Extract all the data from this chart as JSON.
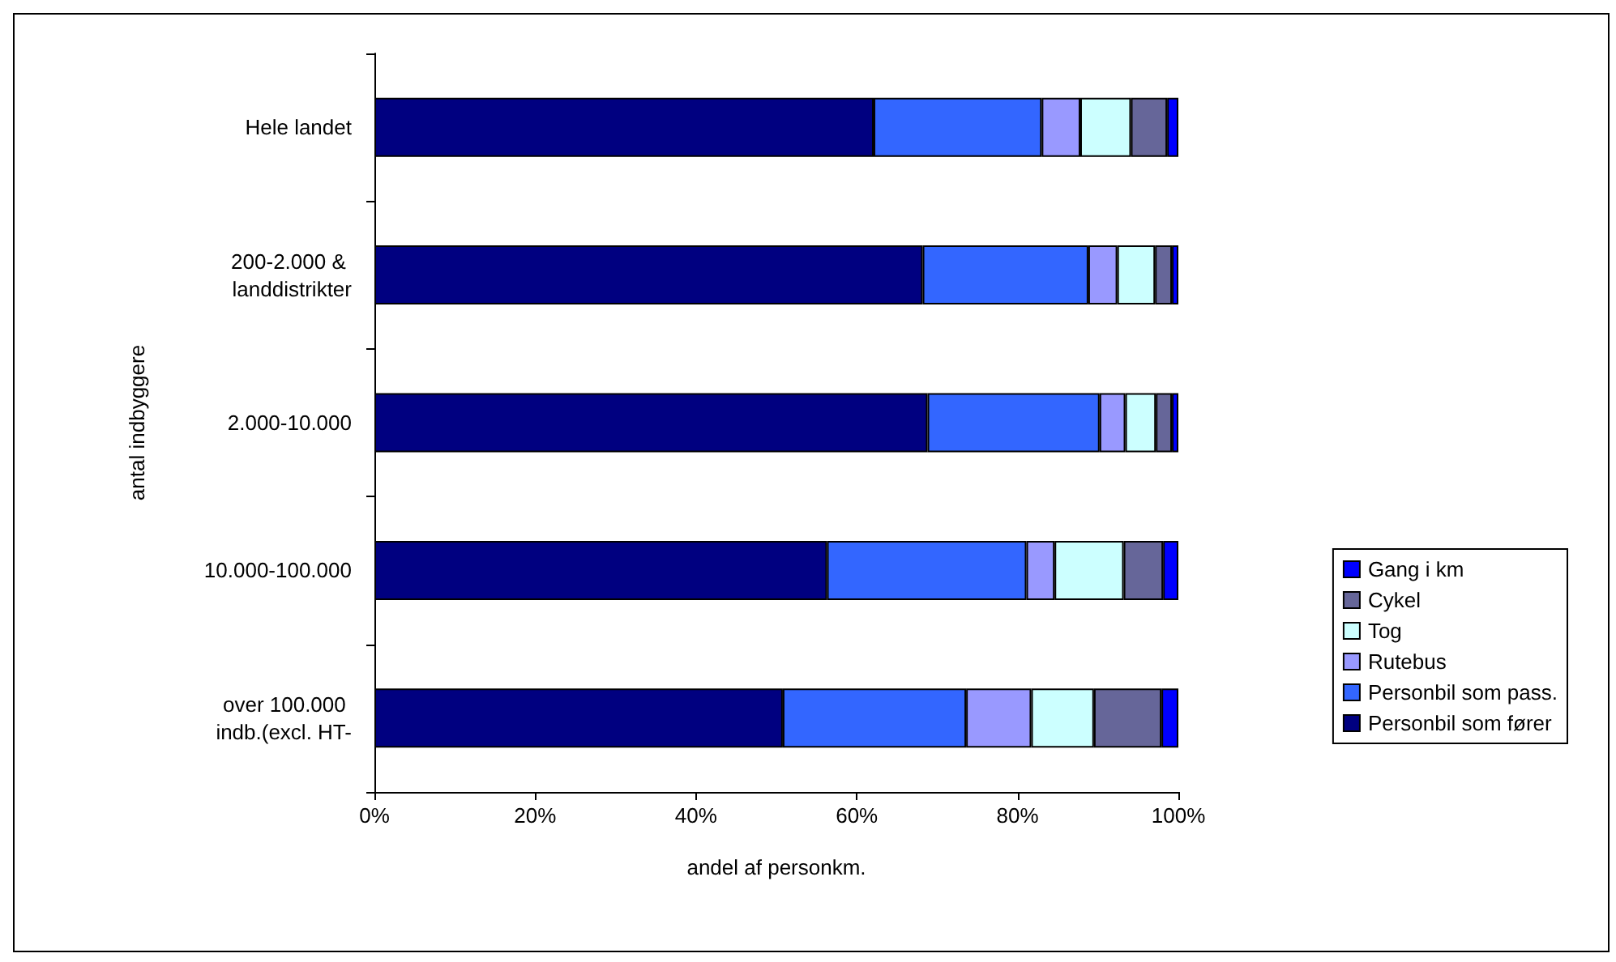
{
  "chart_data": {
    "type": "bar",
    "orientation": "horizontal",
    "stacked": true,
    "categories": [
      "Hele landet",
      "200-2.000 & landdistrikter",
      "2.000-10.000",
      "10.000-100.000",
      "over 100.000 indb.(excl. HT-"
    ],
    "series": [
      {
        "name": "Personbil som fører",
        "color": "#000080",
        "values": [
          62.1,
          68.2,
          68.8,
          56.3,
          50.8
        ]
      },
      {
        "name": "Personbil som pass.",
        "color": "#3366ff",
        "values": [
          20.9,
          20.6,
          21.4,
          24.8,
          22.8
        ]
      },
      {
        "name": "Rutebus",
        "color": "#9999ff",
        "values": [
          4.8,
          3.6,
          3.2,
          3.5,
          8.1
        ]
      },
      {
        "name": "Tog",
        "color": "#ccffff",
        "values": [
          6.3,
          4.7,
          3.8,
          8.6,
          7.8
        ]
      },
      {
        "name": "Cykel",
        "color": "#666699",
        "values": [
          4.5,
          2.1,
          2.0,
          4.9,
          8.4
        ]
      },
      {
        "name": "Gang i km",
        "color": "#0000ff",
        "values": [
          1.4,
          0.8,
          0.8,
          1.9,
          2.1
        ]
      }
    ],
    "xlim": [
      0,
      100
    ],
    "xticks": [
      {
        "value": 0,
        "label": "0%"
      },
      {
        "value": 20,
        "label": "20%"
      },
      {
        "value": 40,
        "label": "40%"
      },
      {
        "value": 60,
        "label": "60%"
      },
      {
        "value": 80,
        "label": "80%"
      },
      {
        "value": 100,
        "label": "100%"
      }
    ],
    "xlabel": "andel af personkm.",
    "ylabel": "antal indbyggere",
    "legend": "right",
    "grid": false
  }
}
